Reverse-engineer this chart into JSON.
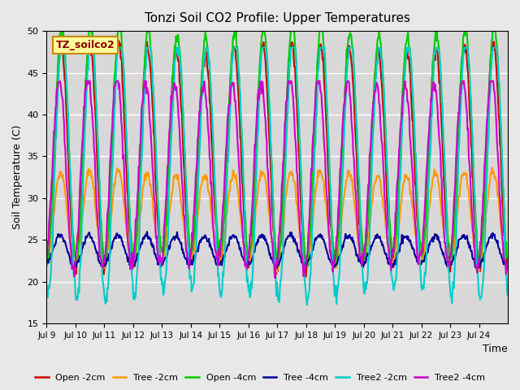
{
  "title": "Tonzi Soil CO2 Profile: Upper Temperatures",
  "ylabel": "Soil Temperature (C)",
  "xlabel": "Time",
  "watermark_text": "TZ_soilco2",
  "ylim": [
    15,
    50
  ],
  "yticks": [
    15,
    20,
    25,
    30,
    35,
    40,
    45,
    50
  ],
  "background_color": "#e8e8e8",
  "plot_bg_color": "#d8d8d8",
  "grid_color": "#ffffff",
  "series": {
    "Open -2cm": {
      "color": "#cc0000",
      "lw": 1.5
    },
    "Tree -2cm": {
      "color": "#ff9900",
      "lw": 1.5
    },
    "Open -4cm": {
      "color": "#00cc00",
      "lw": 1.5
    },
    "Tree -4cm": {
      "color": "#000099",
      "lw": 1.5
    },
    "Tree2 -2cm": {
      "color": "#00cccc",
      "lw": 1.5
    },
    "Tree2 -4cm": {
      "color": "#cc00cc",
      "lw": 1.5
    }
  },
  "x_tick_positions": [
    0,
    1,
    2,
    3,
    4,
    5,
    6,
    7,
    8,
    9,
    10,
    11,
    12,
    13,
    14,
    15
  ],
  "x_tick_labels": [
    "Jul 9",
    "Jul 10",
    "Jul 11",
    "Jul 12",
    "Jul 13",
    "Jul 14",
    "Jul 15",
    "Jul 16",
    "Jul 17",
    "Jul 18",
    "Jul 19",
    "Jul 20",
    "Jul 21",
    "Jul 22",
    "Jul 23",
    "Jul 24"
  ],
  "n_days": 16,
  "points_per_day": 48
}
